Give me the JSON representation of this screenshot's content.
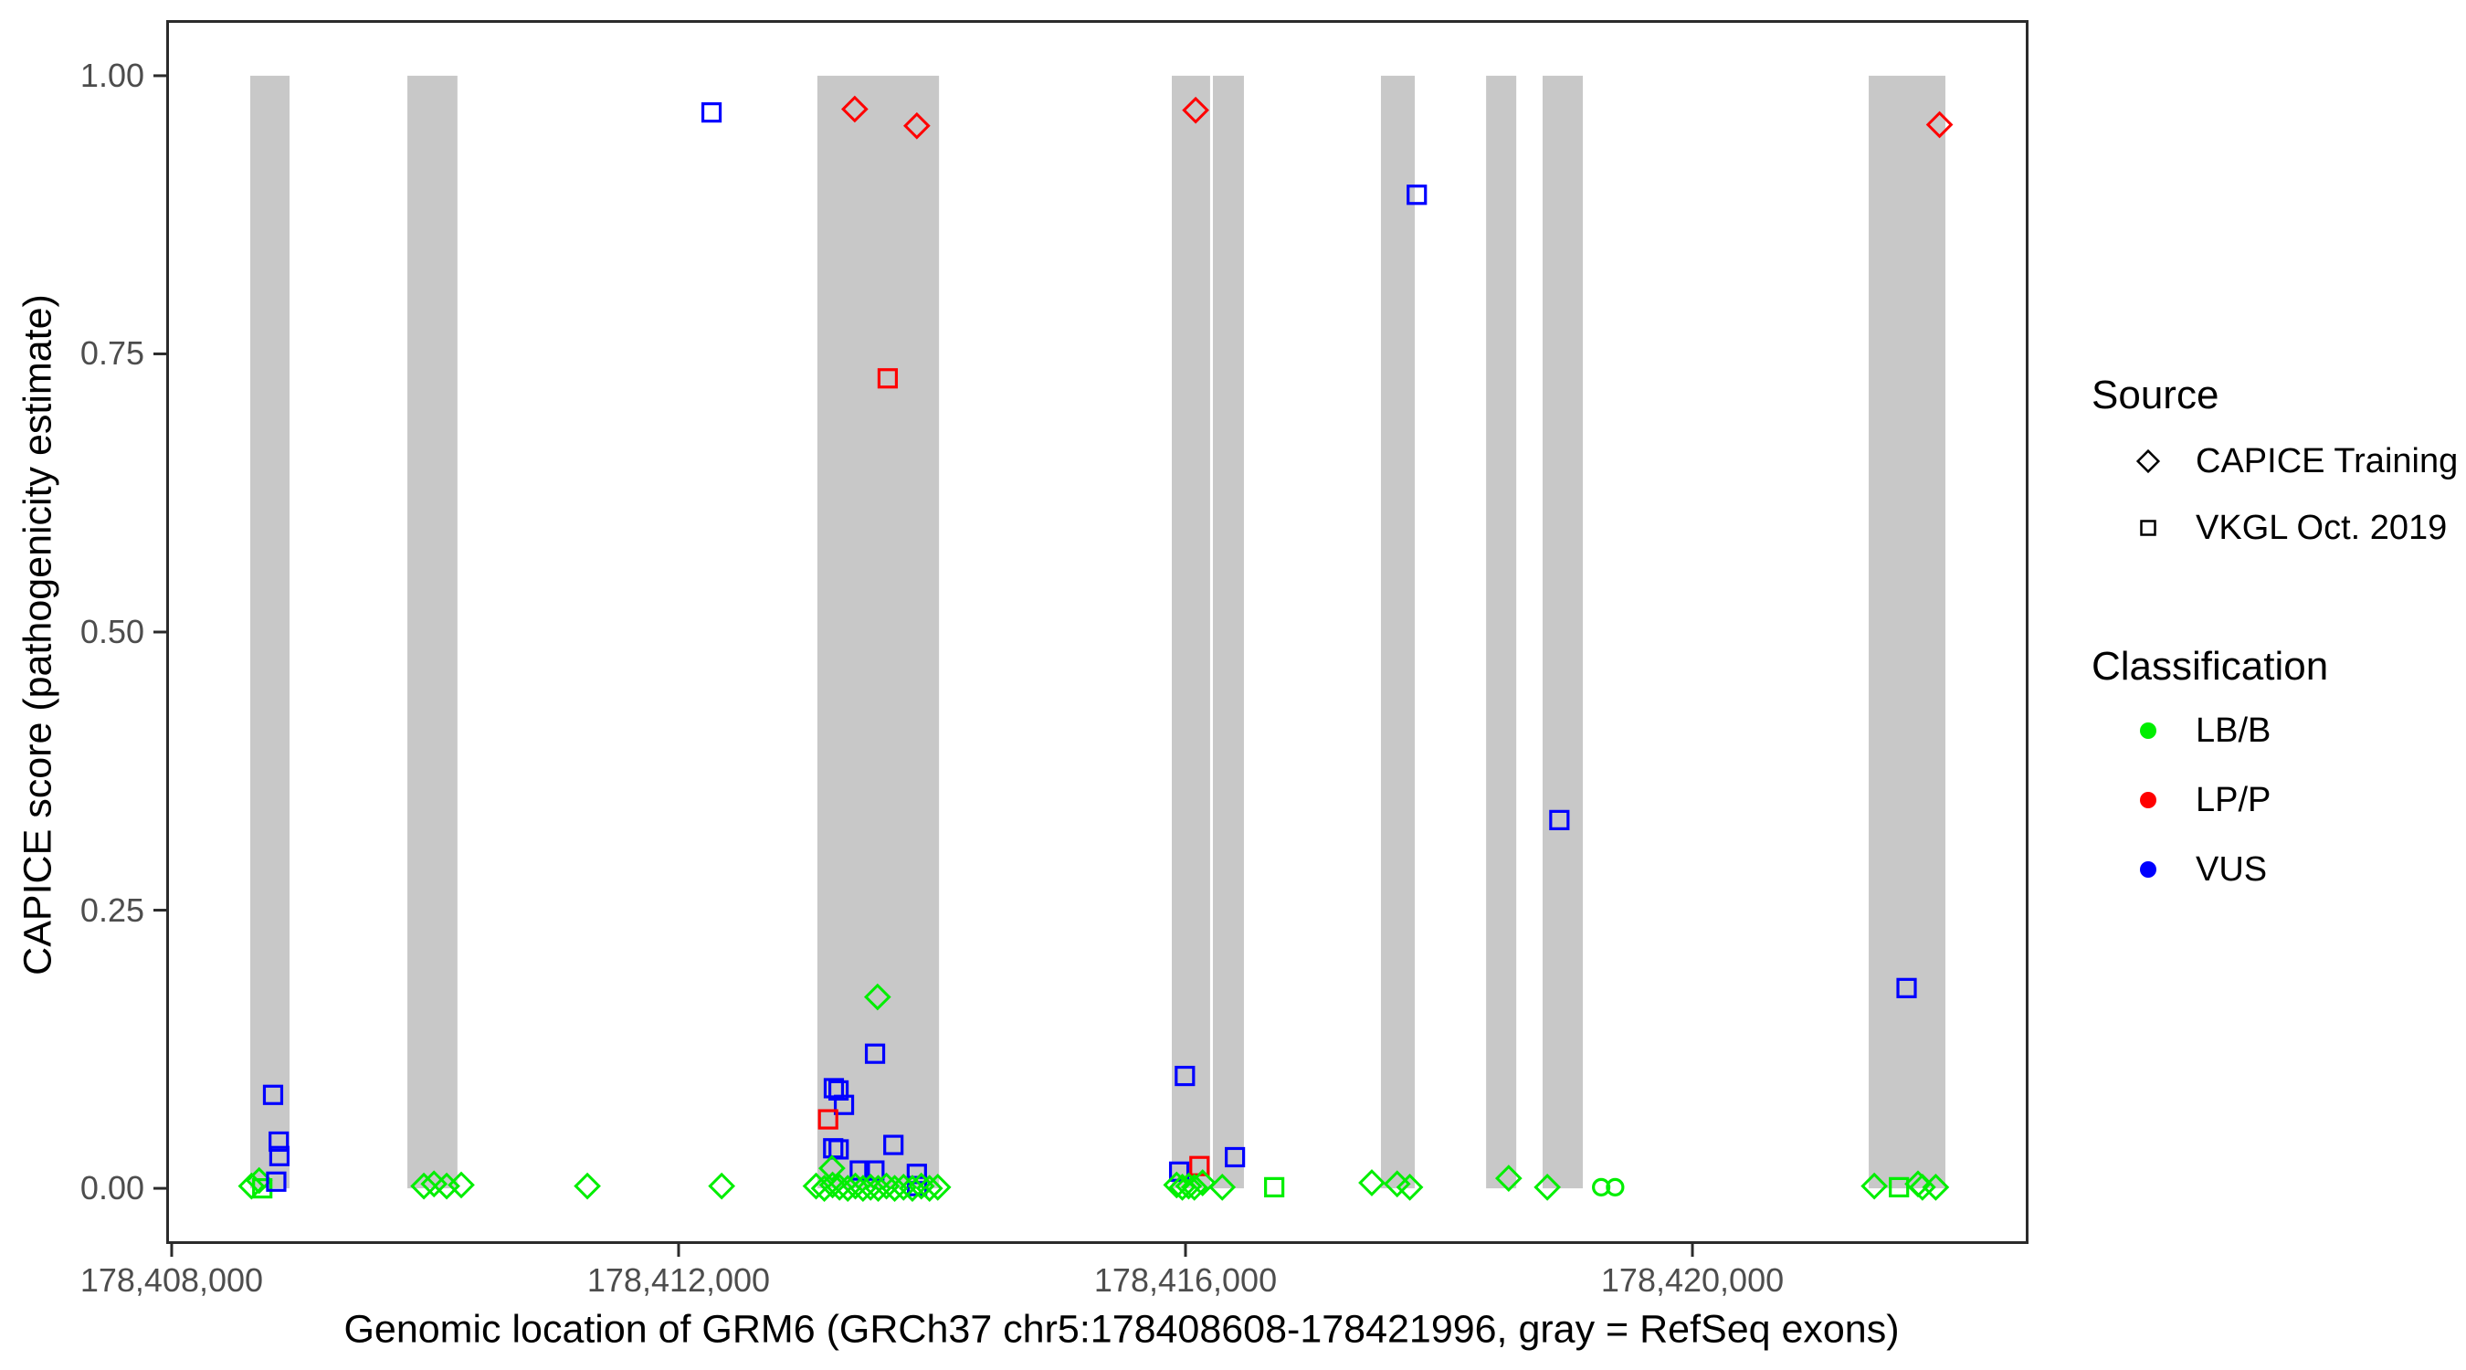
{
  "figure": {
    "background": "#ffffff"
  },
  "axes": {
    "x": {
      "title": "Genomic location of GRM6 (GRCh37 chr5:178408608-178421996, gray = RefSeq exons)",
      "min": 178407957,
      "max": 178422652,
      "ticks": [
        {
          "value": 178408000,
          "label": "178,408,000"
        },
        {
          "value": 178412000,
          "label": "178,412,000"
        },
        {
          "value": 178416000,
          "label": "178,416,000"
        },
        {
          "value": 178420000,
          "label": "178,420,000"
        }
      ]
    },
    "y": {
      "title": "CAPICE score (pathogenicity estimate)",
      "min": -0.05,
      "max": 1.05,
      "ticks": [
        {
          "value": 0.0,
          "label": "0.00"
        },
        {
          "value": 0.25,
          "label": "0.25"
        },
        {
          "value": 0.5,
          "label": "0.50"
        },
        {
          "value": 0.75,
          "label": "0.75"
        },
        {
          "value": 1.0,
          "label": "1.00"
        }
      ]
    }
  },
  "legend": {
    "source": {
      "title": "Source",
      "items": [
        {
          "shape": "diamond",
          "label": "CAPICE Training"
        },
        {
          "shape": "square",
          "label": "VKGL Oct. 2019"
        }
      ]
    },
    "classification": {
      "title": "Classification",
      "items": [
        {
          "key": "LB/B",
          "label": "LB/B",
          "color": "#00ee00"
        },
        {
          "key": "LP/P",
          "label": "LP/P",
          "color": "#ff0000"
        },
        {
          "key": "VUS",
          "label": "VUS",
          "color": "#0000ff"
        }
      ]
    }
  },
  "chart_data": {
    "type": "scatter",
    "title": "",
    "xlabel": "Genomic location of GRM6 (GRCh37 chr5:178408608-178421996, gray = RefSeq exons)",
    "ylabel": "CAPICE score (pathogenicity estimate)",
    "xlim": [
      178407957,
      178422652
    ],
    "ylim": [
      -0.05,
      1.05
    ],
    "grid": false,
    "legend_position": "right",
    "exon_color": "#c8c8c8",
    "colors": {
      "LB/B": "#00ee00",
      "LP/P": "#ff0000",
      "VUS": "#0000ff"
    },
    "shape_meaning": {
      "diamond": "CAPICE Training",
      "square": "VKGL Oct. 2019",
      "circle": "VKGL Oct. 2019"
    },
    "exons": [
      {
        "start": 178408620,
        "end": 178408930
      },
      {
        "start": 178409860,
        "end": 178410255
      },
      {
        "start": 178413095,
        "end": 178414055
      },
      {
        "start": 178415892,
        "end": 178416194
      },
      {
        "start": 178416216,
        "end": 178416461
      },
      {
        "start": 178417542,
        "end": 178417809
      },
      {
        "start": 178418372,
        "end": 178418610
      },
      {
        "start": 178418818,
        "end": 178419135
      },
      {
        "start": 178421391,
        "end": 178421996
      }
    ],
    "points": [
      {
        "x": 178408690,
        "y": 0.007,
        "shape": "diamond",
        "class": "LB/B"
      },
      {
        "x": 178408630,
        "y": 0.002,
        "shape": "diamond",
        "class": "LB/B"
      },
      {
        "x": 178408715,
        "y": 0.0,
        "shape": "square",
        "class": "LB/B"
      },
      {
        "x": 178408800,
        "y": 0.084,
        "shape": "square",
        "class": "VUS"
      },
      {
        "x": 178408845,
        "y": 0.042,
        "shape": "square",
        "class": "VUS"
      },
      {
        "x": 178408850,
        "y": 0.029,
        "shape": "square",
        "class": "VUS"
      },
      {
        "x": 178408825,
        "y": 0.006,
        "shape": "square",
        "class": "VUS"
      },
      {
        "x": 178409990,
        "y": 0.002,
        "shape": "diamond",
        "class": "LB/B"
      },
      {
        "x": 178410070,
        "y": 0.004,
        "shape": "diamond",
        "class": "LB/B"
      },
      {
        "x": 178410170,
        "y": 0.002,
        "shape": "diamond",
        "class": "LB/B"
      },
      {
        "x": 178410285,
        "y": 0.003,
        "shape": "diamond",
        "class": "LB/B"
      },
      {
        "x": 178411280,
        "y": 0.002,
        "shape": "diamond",
        "class": "LB/B"
      },
      {
        "x": 178412260,
        "y": 0.967,
        "shape": "square",
        "class": "VUS"
      },
      {
        "x": 178412340,
        "y": 0.002,
        "shape": "diamond",
        "class": "LB/B"
      },
      {
        "x": 178413390,
        "y": 0.97,
        "shape": "diamond",
        "class": "LP/P"
      },
      {
        "x": 178413880,
        "y": 0.955,
        "shape": "diamond",
        "class": "LP/P"
      },
      {
        "x": 178413650,
        "y": 0.728,
        "shape": "square",
        "class": "LP/P"
      },
      {
        "x": 178413570,
        "y": 0.172,
        "shape": "diamond",
        "class": "LB/B"
      },
      {
        "x": 178413550,
        "y": 0.121,
        "shape": "square",
        "class": "VUS"
      },
      {
        "x": 178413225,
        "y": 0.09,
        "shape": "square",
        "class": "VUS"
      },
      {
        "x": 178413262,
        "y": 0.088,
        "shape": "square",
        "class": "VUS"
      },
      {
        "x": 178413305,
        "y": 0.075,
        "shape": "square",
        "class": "VUS"
      },
      {
        "x": 178413180,
        "y": 0.062,
        "shape": "square",
        "class": "LP/P"
      },
      {
        "x": 178413220,
        "y": 0.036,
        "shape": "square",
        "class": "VUS"
      },
      {
        "x": 178413263,
        "y": 0.035,
        "shape": "square",
        "class": "VUS"
      },
      {
        "x": 178413695,
        "y": 0.039,
        "shape": "square",
        "class": "VUS"
      },
      {
        "x": 178413210,
        "y": 0.018,
        "shape": "diamond",
        "class": "LB/B"
      },
      {
        "x": 178413430,
        "y": 0.016,
        "shape": "square",
        "class": "VUS"
      },
      {
        "x": 178413545,
        "y": 0.016,
        "shape": "square",
        "class": "VUS"
      },
      {
        "x": 178413880,
        "y": 0.013,
        "shape": "square",
        "class": "VUS"
      },
      {
        "x": 178413882,
        "y": 0.002,
        "shape": "square",
        "class": "VUS"
      },
      {
        "x": 178413085,
        "y": 0.002,
        "shape": "diamond",
        "class": "LB/B"
      },
      {
        "x": 178413150,
        "y": 0.0,
        "shape": "diamond",
        "class": "LB/B"
      },
      {
        "x": 178413215,
        "y": 0.003,
        "shape": "diamond",
        "class": "LB/B"
      },
      {
        "x": 178413270,
        "y": 0.001,
        "shape": "diamond",
        "class": "LB/B"
      },
      {
        "x": 178413335,
        "y": 0.0,
        "shape": "diamond",
        "class": "LB/B"
      },
      {
        "x": 178413395,
        "y": 0.002,
        "shape": "diamond",
        "class": "LB/B"
      },
      {
        "x": 178413455,
        "y": 0.0,
        "shape": "diamond",
        "class": "LB/B"
      },
      {
        "x": 178413515,
        "y": 0.001,
        "shape": "diamond",
        "class": "LB/B"
      },
      {
        "x": 178413575,
        "y": 0.0,
        "shape": "diamond",
        "class": "LB/B"
      },
      {
        "x": 178413640,
        "y": 0.002,
        "shape": "diamond",
        "class": "LB/B"
      },
      {
        "x": 178413705,
        "y": 0.0,
        "shape": "diamond",
        "class": "LB/B"
      },
      {
        "x": 178413775,
        "y": 0.001,
        "shape": "diamond",
        "class": "LB/B"
      },
      {
        "x": 178413845,
        "y": 0.0,
        "shape": "diamond",
        "class": "LB/B"
      },
      {
        "x": 178413915,
        "y": 0.002,
        "shape": "diamond",
        "class": "LB/B"
      },
      {
        "x": 178413980,
        "y": 0.0,
        "shape": "diamond",
        "class": "LB/B"
      },
      {
        "x": 178414045,
        "y": 0.001,
        "shape": "diamond",
        "class": "LB/B"
      },
      {
        "x": 178416080,
        "y": 0.969,
        "shape": "diamond",
        "class": "LP/P"
      },
      {
        "x": 178415995,
        "y": 0.101,
        "shape": "square",
        "class": "VUS"
      },
      {
        "x": 178416390,
        "y": 0.028,
        "shape": "square",
        "class": "VUS"
      },
      {
        "x": 178416110,
        "y": 0.02,
        "shape": "square",
        "class": "LP/P"
      },
      {
        "x": 178415950,
        "y": 0.015,
        "shape": "square",
        "class": "VUS"
      },
      {
        "x": 178415930,
        "y": 0.003,
        "shape": "diamond",
        "class": "LB/B"
      },
      {
        "x": 178415975,
        "y": 0.001,
        "shape": "diamond",
        "class": "LB/B"
      },
      {
        "x": 178416025,
        "y": 0.002,
        "shape": "diamond",
        "class": "LB/B"
      },
      {
        "x": 178416070,
        "y": 0.001,
        "shape": "diamond",
        "class": "LB/B"
      },
      {
        "x": 178416135,
        "y": 0.005,
        "shape": "diamond",
        "class": "LB/B"
      },
      {
        "x": 178416290,
        "y": 0.001,
        "shape": "diamond",
        "class": "LB/B"
      },
      {
        "x": 178416700,
        "y": 0.001,
        "shape": "square",
        "class": "LB/B"
      },
      {
        "x": 178417825,
        "y": 0.893,
        "shape": "square",
        "class": "VUS"
      },
      {
        "x": 178417470,
        "y": 0.005,
        "shape": "diamond",
        "class": "LB/B"
      },
      {
        "x": 178417670,
        "y": 0.004,
        "shape": "diamond",
        "class": "LB/B"
      },
      {
        "x": 178417770,
        "y": 0.001,
        "shape": "diamond",
        "class": "LB/B"
      },
      {
        "x": 178418950,
        "y": 0.331,
        "shape": "square",
        "class": "VUS"
      },
      {
        "x": 178418550,
        "y": 0.009,
        "shape": "diamond",
        "class": "LB/B"
      },
      {
        "x": 178418855,
        "y": 0.001,
        "shape": "diamond",
        "class": "LB/B"
      },
      {
        "x": 178419280,
        "y": 0.001,
        "shape": "circle",
        "class": "LB/B"
      },
      {
        "x": 178419390,
        "y": 0.001,
        "shape": "circle",
        "class": "LB/B"
      },
      {
        "x": 178421950,
        "y": 0.956,
        "shape": "diamond",
        "class": "LP/P"
      },
      {
        "x": 178421690,
        "y": 0.18,
        "shape": "square",
        "class": "VUS"
      },
      {
        "x": 178421435,
        "y": 0.002,
        "shape": "diamond",
        "class": "LB/B"
      },
      {
        "x": 178421630,
        "y": 0.001,
        "shape": "square",
        "class": "LB/B"
      },
      {
        "x": 178421780,
        "y": 0.004,
        "shape": "diamond",
        "class": "LB/B"
      },
      {
        "x": 178421815,
        "y": 0.001,
        "shape": "diamond",
        "class": "LB/B"
      },
      {
        "x": 178421920,
        "y": 0.001,
        "shape": "diamond",
        "class": "LB/B"
      }
    ]
  }
}
